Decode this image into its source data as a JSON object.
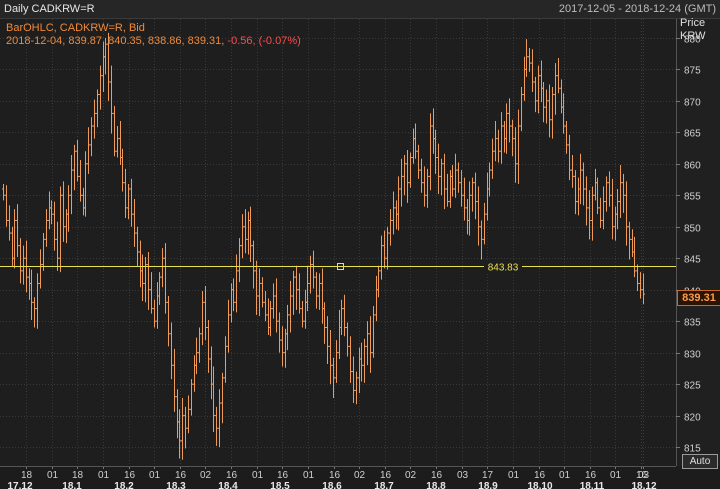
{
  "header": {
    "title": "Daily CADKRW=R",
    "date_range": "2017-12-05 - 2018-12-24 (GMT)"
  },
  "legend": {
    "line_prefix": "BarOHLC, CADKRW=R, Bid",
    "ohlc": "2018-12-04, 839.87, 840.35, 838.86, 839.31,",
    "change": "-0.56, (-0.07%)"
  },
  "axis": {
    "price_label": "Price",
    "currency_label": "KRW"
  },
  "auto_button": "Auto",
  "colors": {
    "background": "#1c1c1c",
    "grid": "#3a3a3a",
    "bars": "#f09a5a",
    "hline": "#e8e050",
    "negative": "#ff4b4b"
  },
  "chart_data": {
    "type": "bar",
    "style": "OHLC",
    "instrument": "CADKRW=R",
    "last_value": "839.31",
    "ylim": [
      812,
      883
    ],
    "yticks": [
      815,
      820,
      825,
      830,
      835,
      840,
      845,
      850,
      855,
      860,
      865,
      870,
      875,
      880
    ],
    "horizontal_line": {
      "value": 843.83,
      "label": "843.83"
    },
    "x_day_ticks": [
      "18",
      "01",
      "18",
      "01",
      "16",
      "01",
      "16",
      "02",
      "16",
      "01",
      "16",
      "01",
      "16",
      "02",
      "16",
      "02",
      "16",
      "03",
      "17",
      "01",
      "16",
      "01",
      "16",
      "01",
      "16",
      "03"
    ],
    "x_month_ticks": [
      "17.12",
      "18.1",
      "18.2",
      "18.3",
      "18.4",
      "18.5",
      "18.6",
      "18.7",
      "18.8",
      "18.9",
      "18.10",
      "18.11",
      "18.12"
    ],
    "close_series": [
      855,
      851,
      849,
      845,
      851,
      847,
      843,
      845,
      842,
      841,
      838,
      837,
      841,
      844,
      848,
      851,
      853,
      852,
      848,
      845,
      855,
      850,
      852,
      855,
      859,
      862,
      858,
      855,
      853,
      860,
      863,
      866,
      868,
      871,
      874,
      877,
      879,
      873,
      868,
      862,
      864,
      861,
      857,
      853,
      856,
      852,
      849,
      846,
      843,
      841,
      844,
      840,
      837,
      835,
      839,
      842,
      845,
      838,
      833,
      828,
      823,
      819,
      816,
      820,
      818,
      821,
      825,
      828,
      830,
      833,
      838,
      834,
      829,
      825,
      820,
      818,
      822,
      826,
      831,
      836,
      840,
      838,
      843,
      847,
      850,
      848,
      851,
      847,
      843,
      839,
      841,
      838,
      836,
      834,
      837,
      839,
      835,
      832,
      830,
      833,
      836,
      839,
      842,
      840,
      837,
      835,
      838,
      841,
      844,
      842,
      839,
      841,
      837,
      834,
      831,
      828,
      826,
      830,
      834,
      837,
      834,
      831,
      827,
      824,
      826,
      829,
      828,
      831,
      833,
      830,
      836,
      840,
      843,
      847,
      845,
      849,
      851,
      853,
      852,
      856,
      858,
      860,
      857,
      861,
      864,
      862,
      859,
      857,
      855,
      858,
      866,
      864,
      861,
      858,
      860,
      856,
      854,
      858,
      856,
      859,
      857,
      855,
      853,
      851,
      855,
      857,
      854,
      850,
      848,
      852,
      856,
      859,
      862,
      864,
      862,
      866,
      864,
      868,
      866,
      864,
      860,
      866,
      871,
      875,
      877,
      876,
      873,
      870,
      874,
      872,
      869,
      870,
      867,
      871,
      874,
      872,
      869,
      866,
      863,
      859,
      858,
      854,
      856,
      859,
      856,
      853,
      851,
      855,
      857,
      853,
      851,
      854,
      857,
      855,
      850,
      852,
      854,
      857,
      855,
      850,
      848,
      846,
      843,
      841,
      840,
      839.31
    ]
  }
}
